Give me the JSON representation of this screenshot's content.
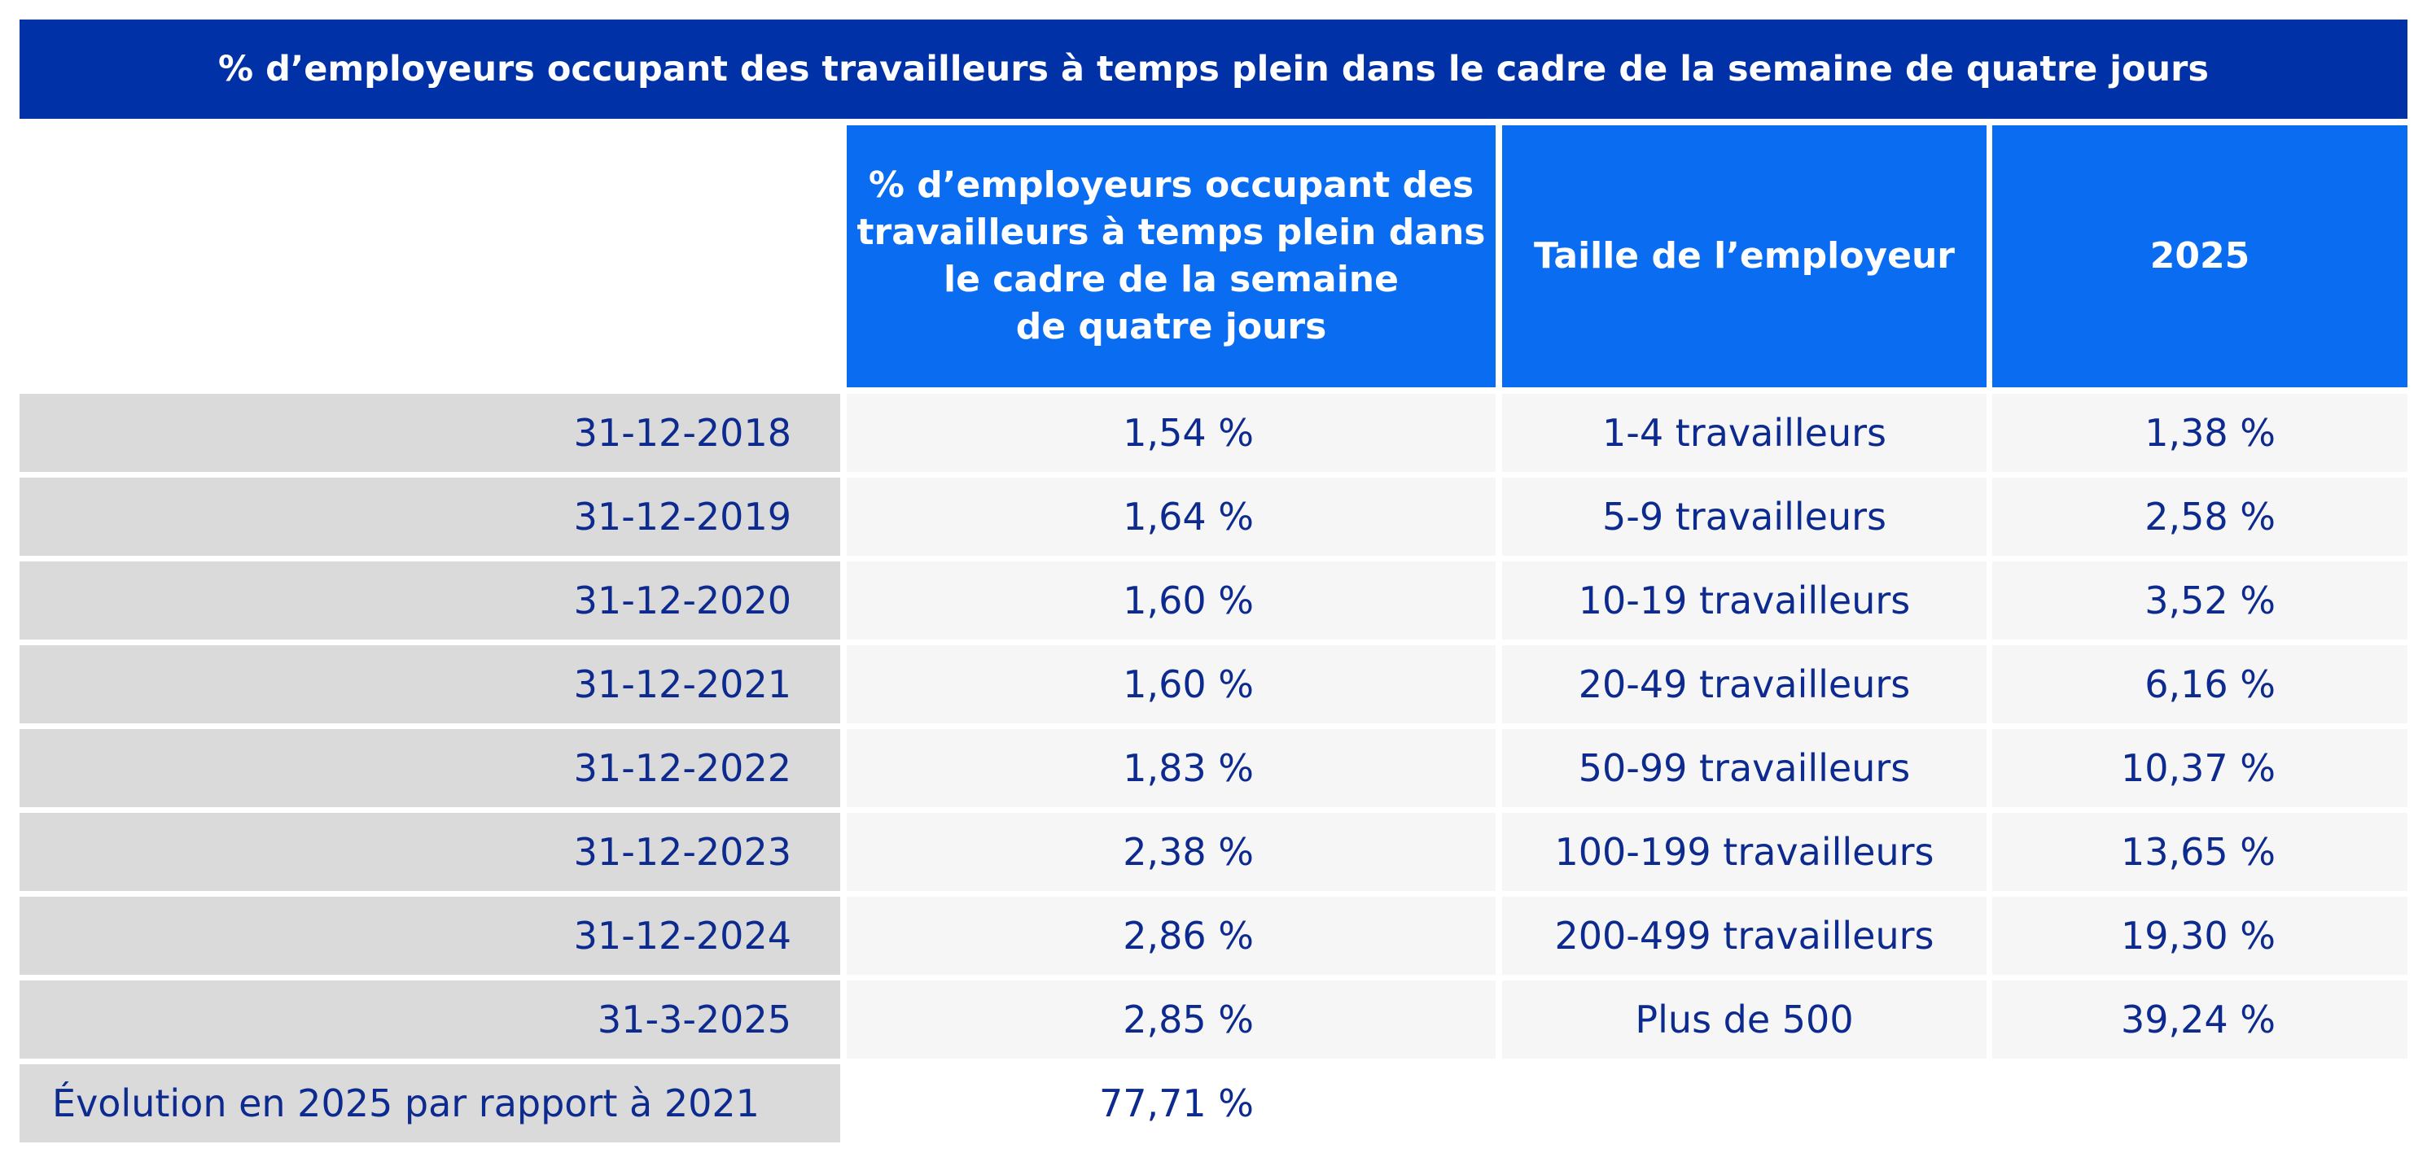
{
  "title": "% d’employeurs occupant des travailleurs à temps plein dans le cadre de la semaine de quatre jours",
  "headers": {
    "pct_lines": [
      "% d’employeurs occupant des",
      "travailleurs à temps plein dans",
      "le cadre de la semaine",
      "de quatre jours"
    ],
    "size": "Taille de l’employeur",
    "year": "2025"
  },
  "rows": [
    {
      "date": "31-12-2018",
      "pct": "1,54 %",
      "size": "1-4 travailleurs",
      "year_pct": "1,38 %"
    },
    {
      "date": "31-12-2019",
      "pct": "1,64 %",
      "size": "5-9 travailleurs",
      "year_pct": "2,58 %"
    },
    {
      "date": "31-12-2020",
      "pct": "1,60 %",
      "size": "10-19 travailleurs",
      "year_pct": "3,52 %"
    },
    {
      "date": "31-12-2021",
      "pct": "1,60 %",
      "size": "20-49 travailleurs",
      "year_pct": "6,16 %"
    },
    {
      "date": "31-12-2022",
      "pct": "1,83 %",
      "size": "50-99 travailleurs",
      "year_pct": "10,37 %"
    },
    {
      "date": "31-12-2023",
      "pct": "2,38 %",
      "size": "100-199 travailleurs",
      "year_pct": "13,65 %"
    },
    {
      "date": "31-12-2024",
      "pct": "2,86 %",
      "size": "200-499 travailleurs",
      "year_pct": "19,30 %"
    },
    {
      "date": "31-3-2025",
      "pct": "2,85 %",
      "size": "Plus de 500",
      "year_pct": "39,24 %"
    }
  ],
  "evolution": {
    "label": "Évolution en 2025 par rapport à 2021",
    "value": "77,71 %"
  },
  "colors": {
    "title_bg": "#0131a6",
    "header_bg": "#0a6cf1",
    "text": "#0d2a8f",
    "date_cell_bg": "#dadada",
    "data_cell_bg": "#f6f6f6"
  }
}
